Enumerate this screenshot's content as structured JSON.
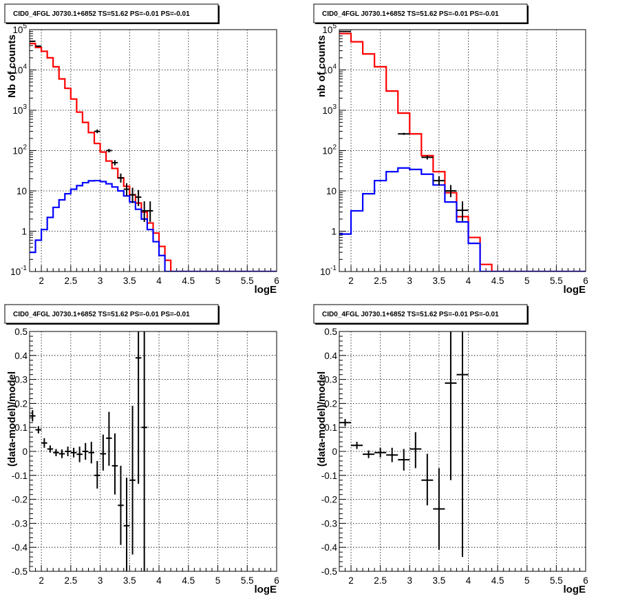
{
  "chart_data": [
    {
      "type": "histogram",
      "title": "CID0_4FGL J0730.1+6852 TS=51.62 PS=-0.01 PS=-0.01",
      "xlabel": "logE",
      "ylabel": "Nb of counts",
      "xlim": [
        1.8,
        6.0
      ],
      "ylim": [
        0.1,
        100000
      ],
      "yscale": "log",
      "grid": true,
      "xticks": [
        "2",
        "2.5",
        "3",
        "3.5",
        "4",
        "4.5",
        "5",
        "5.5",
        "6"
      ],
      "yticks": [
        "10^-1",
        "1",
        "10",
        "10^2",
        "10^3",
        "10^4",
        "10^5"
      ],
      "bin_edges": [
        1.8,
        1.9,
        2.0,
        2.1,
        2.2,
        2.3,
        2.4,
        2.5,
        2.6,
        2.7,
        2.8,
        2.9,
        3.0,
        3.1,
        3.2,
        3.3,
        3.4,
        3.5,
        3.6,
        3.7,
        3.8,
        3.9,
        4.0,
        4.1,
        4.2,
        4.3,
        4.4,
        4.5,
        4.6,
        4.7,
        4.8,
        4.9,
        5.0,
        5.1,
        5.2,
        5.3,
        5.4,
        5.5,
        5.6,
        5.7,
        5.8,
        5.9,
        6.0
      ],
      "series": [
        {
          "color": "#ff0000",
          "values": [
            45000,
            36000,
            29000,
            20000,
            12000,
            6000,
            3500,
            1900,
            900,
            500,
            280,
            150,
            92,
            55,
            36,
            21,
            13,
            8,
            5,
            3,
            1.6,
            0.9,
            0.42,
            0.19,
            0.08,
            0.08,
            0.08,
            0.08,
            0.08,
            0.08,
            0.08,
            0.08,
            0.08,
            0.08,
            0.08,
            0.08,
            0.08,
            0.08,
            0.08,
            0.08,
            0.08,
            0.08
          ]
        },
        {
          "color": "#0000ff",
          "values": [
            0.3,
            0.6,
            1.1,
            2.2,
            3.9,
            6,
            8.5,
            11,
            13.5,
            16,
            17.8,
            18,
            17,
            15,
            12.5,
            10,
            7.5,
            5.3,
            3.5,
            2,
            1.1,
            0.55,
            0.25,
            0.1,
            0.08,
            0.08,
            0.08,
            0.08,
            0.08,
            0.08,
            0.08,
            0.08,
            0.08,
            0.08,
            0.08,
            0.08,
            0.08,
            0.08,
            0.08,
            0.08,
            0.08,
            0.08
          ]
        }
      ],
      "points": [
        {
          "x": 1.85,
          "xerr": 0.05,
          "y": 51500,
          "ylo": 51300,
          "yhi": 51700
        },
        {
          "x": 1.95,
          "xerr": 0.05,
          "y": 39000,
          "ylo": 38800,
          "yhi": 39200
        },
        {
          "x": 2.95,
          "xerr": 0.05,
          "y": 300,
          "ylo": 270,
          "yhi": 335
        },
        {
          "x": 3.15,
          "xerr": 0.05,
          "y": 100,
          "ylo": 90,
          "yhi": 110
        },
        {
          "x": 3.25,
          "xerr": 0.05,
          "y": 50,
          "ylo": 43,
          "yhi": 58
        },
        {
          "x": 3.35,
          "xerr": 0.05,
          "y": 21,
          "ylo": 16,
          "yhi": 27
        },
        {
          "x": 3.45,
          "xerr": 0.05,
          "y": 11,
          "ylo": 7.5,
          "yhi": 15.5
        },
        {
          "x": 3.55,
          "xerr": 0.05,
          "y": 8,
          "ylo": 5,
          "yhi": 12
        },
        {
          "x": 3.65,
          "xerr": 0.05,
          "y": 7,
          "ylo": 4.2,
          "yhi": 10.5
        },
        {
          "x": 3.75,
          "xerr": 0.05,
          "y": 3.2,
          "ylo": 1.7,
          "yhi": 5.5
        },
        {
          "x": 3.85,
          "xerr": 0.05,
          "y": 3.2,
          "ylo": 1.7,
          "yhi": 5.5
        }
      ]
    },
    {
      "type": "histogram",
      "title": "CID0_4FGL J0730.1+6852 TS=51.62 PS=-0.01 PS=-0.01",
      "xlabel": "logE",
      "ylabel": "nb of counts",
      "xlim": [
        1.8,
        6.0
      ],
      "ylim": [
        0.1,
        100000
      ],
      "yscale": "log",
      "grid": true,
      "xticks": [
        "2",
        "2.5",
        "3",
        "3.5",
        "4",
        "4.5",
        "5",
        "5.5",
        "6"
      ],
      "yticks": [
        "10^-1",
        "1",
        "10",
        "10^2",
        "10^3",
        "10^4",
        "10^5"
      ],
      "bin_edges": [
        1.8,
        2.0,
        2.2,
        2.4,
        2.6,
        2.8,
        3.0,
        3.2,
        3.4,
        3.6,
        3.8,
        4.0,
        4.2,
        4.4,
        4.6,
        4.8,
        5.0,
        5.2,
        5.4,
        5.6,
        5.8,
        6.0
      ],
      "series": [
        {
          "color": "#ff0000",
          "values": [
            80000,
            50000,
            25000,
            12000,
            3000,
            850,
            260,
            75,
            30,
            9,
            2.3,
            0.7,
            0.15,
            0.09,
            0.09,
            0.09,
            0.09,
            0.09,
            0.09,
            0.09,
            0.09
          ]
        },
        {
          "color": "#0000ff",
          "values": [
            0.85,
            3.2,
            8.5,
            18,
            30,
            37,
            34,
            26,
            14,
            5.3,
            1.7,
            0.5,
            0.09,
            0.09,
            0.09,
            0.09,
            0.09,
            0.09,
            0.09,
            0.09,
            0.09
          ]
        }
      ],
      "points": [
        {
          "x": 1.9,
          "xerr": 0.1,
          "y": 90000,
          "ylo": 89000,
          "yhi": 91000
        },
        {
          "x": 2.9,
          "xerr": 0.1,
          "y": 260,
          "ylo": 245,
          "yhi": 275
        },
        {
          "x": 3.3,
          "xerr": 0.1,
          "y": 68,
          "ylo": 60,
          "yhi": 76
        },
        {
          "x": 3.5,
          "xerr": 0.1,
          "y": 18,
          "ylo": 13.5,
          "yhi": 23
        },
        {
          "x": 3.7,
          "xerr": 0.1,
          "y": 10,
          "ylo": 7,
          "yhi": 14
        },
        {
          "x": 3.9,
          "xerr": 0.1,
          "y": 3.3,
          "ylo": 1.8,
          "yhi": 5.5
        }
      ]
    },
    {
      "type": "scatter",
      "title": "CID0_4FGL J0730.1+6852 TS=51.62 PS=-0.01 PS=-0.01",
      "xlabel": "logE",
      "ylabel": "(data-model)/model",
      "xlim": [
        1.8,
        6.0
      ],
      "ylim": [
        -0.5,
        0.5
      ],
      "grid": true,
      "xticks": [
        "2",
        "2.5",
        "3",
        "3.5",
        "4",
        "4.5",
        "5",
        "5.5",
        "6"
      ],
      "yticks": [
        "-0.5",
        "-0.4",
        "-0.3",
        "-0.2",
        "-0.1",
        "0",
        "0.1",
        "0.2",
        "0.3",
        "0.4",
        "0.5"
      ],
      "points": [
        {
          "x": 1.85,
          "xerr": 0.05,
          "y": 0.148,
          "ylo": 0.125,
          "yhi": 0.172
        },
        {
          "x": 1.95,
          "xerr": 0.05,
          "y": 0.09,
          "ylo": 0.075,
          "yhi": 0.105
        },
        {
          "x": 2.05,
          "xerr": 0.05,
          "y": 0.035,
          "ylo": 0.015,
          "yhi": 0.055
        },
        {
          "x": 2.15,
          "xerr": 0.05,
          "y": 0.01,
          "ylo": -0.005,
          "yhi": 0.025
        },
        {
          "x": 2.25,
          "xerr": 0.05,
          "y": -0.005,
          "ylo": -0.02,
          "yhi": 0.01
        },
        {
          "x": 2.35,
          "xerr": 0.05,
          "y": -0.01,
          "ylo": -0.028,
          "yhi": 0.008
        },
        {
          "x": 2.45,
          "xerr": 0.05,
          "y": 0.0,
          "ylo": -0.02,
          "yhi": 0.02
        },
        {
          "x": 2.55,
          "xerr": 0.05,
          "y": -0.005,
          "ylo": -0.025,
          "yhi": 0.015
        },
        {
          "x": 2.65,
          "xerr": 0.05,
          "y": -0.012,
          "ylo": -0.045,
          "yhi": 0.02
        },
        {
          "x": 2.75,
          "xerr": 0.05,
          "y": 0.0,
          "ylo": -0.035,
          "yhi": 0.035
        },
        {
          "x": 2.85,
          "xerr": 0.05,
          "y": -0.005,
          "ylo": -0.05,
          "yhi": 0.04
        },
        {
          "x": 2.95,
          "xerr": 0.05,
          "y": -0.1,
          "ylo": -0.155,
          "yhi": -0.04
        },
        {
          "x": 3.05,
          "xerr": 0.05,
          "y": -0.01,
          "ylo": -0.08,
          "yhi": 0.07
        },
        {
          "x": 3.15,
          "xerr": 0.05,
          "y": 0.055,
          "ylo": -0.06,
          "yhi": 0.165
        },
        {
          "x": 3.25,
          "xerr": 0.05,
          "y": -0.06,
          "ylo": -0.18,
          "yhi": 0.075
        },
        {
          "x": 3.35,
          "xerr": 0.05,
          "y": -0.225,
          "ylo": -0.39,
          "yhi": -0.06
        },
        {
          "x": 3.45,
          "xerr": 0.05,
          "y": -0.31,
          "ylo": -0.5,
          "yhi": -0.11
        },
        {
          "x": 3.55,
          "xerr": 0.05,
          "y": -0.12,
          "ylo": -0.43,
          "yhi": 0.19
        },
        {
          "x": 3.65,
          "xerr": 0.05,
          "y": 0.39,
          "ylo": -0.135,
          "yhi": 0.5
        },
        {
          "x": 3.75,
          "xerr": 0.05,
          "y": 0.1,
          "ylo": -0.5,
          "yhi": 0.5
        }
      ]
    },
    {
      "type": "scatter",
      "title": "CID0_4FGL J0730.1+6852 TS=51.62 PS=-0.01 PS=-0.01",
      "xlabel": "logE",
      "ylabel": "(data-model)/model",
      "xlim": [
        1.8,
        6.0
      ],
      "ylim": [
        -0.5,
        0.5
      ],
      "grid": true,
      "xticks": [
        "2",
        "2.5",
        "3",
        "3.5",
        "4",
        "4.5",
        "5",
        "5.5",
        "6"
      ],
      "yticks": [
        "-0.5",
        "-0.4",
        "-0.3",
        "-0.2",
        "-0.1",
        "0",
        "0.1",
        "0.2",
        "0.3",
        "0.4",
        "0.5"
      ],
      "points": [
        {
          "x": 1.9,
          "xerr": 0.1,
          "y": 0.12,
          "ylo": 0.105,
          "yhi": 0.135
        },
        {
          "x": 2.1,
          "xerr": 0.1,
          "y": 0.025,
          "ylo": 0.01,
          "yhi": 0.04
        },
        {
          "x": 2.3,
          "xerr": 0.1,
          "y": -0.012,
          "ylo": -0.028,
          "yhi": 0.004
        },
        {
          "x": 2.5,
          "xerr": 0.1,
          "y": -0.005,
          "ylo": -0.025,
          "yhi": 0.015
        },
        {
          "x": 2.7,
          "xerr": 0.1,
          "y": -0.015,
          "ylo": -0.045,
          "yhi": 0.015
        },
        {
          "x": 2.9,
          "xerr": 0.1,
          "y": -0.035,
          "ylo": -0.08,
          "yhi": 0.01
        },
        {
          "x": 3.1,
          "xerr": 0.1,
          "y": 0.01,
          "ylo": -0.07,
          "yhi": 0.08
        },
        {
          "x": 3.3,
          "xerr": 0.1,
          "y": -0.12,
          "ylo": -0.225,
          "yhi": -0.01
        },
        {
          "x": 3.5,
          "xerr": 0.1,
          "y": -0.24,
          "ylo": -0.41,
          "yhi": -0.07
        },
        {
          "x": 3.7,
          "xerr": 0.1,
          "y": 0.285,
          "ylo": -0.12,
          "yhi": 0.5
        },
        {
          "x": 3.9,
          "xerr": 0.1,
          "y": 0.32,
          "ylo": -0.44,
          "yhi": 0.5
        }
      ]
    }
  ]
}
